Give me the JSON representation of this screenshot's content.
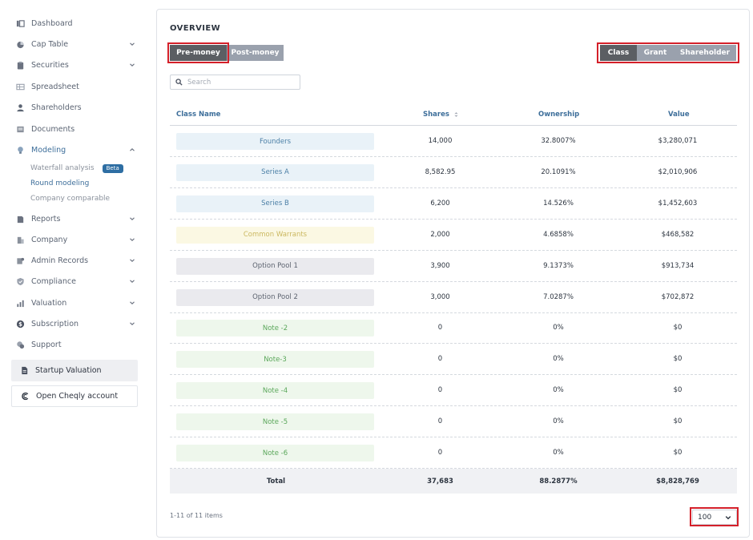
{
  "sidebar": {
    "items": [
      {
        "label": "Dashboard",
        "icon": "dashboard-icon",
        "chevron": false
      },
      {
        "label": "Cap Table",
        "icon": "pie-chart-icon",
        "chevron": true
      },
      {
        "label": "Securities",
        "icon": "clipboard-icon",
        "chevron": true
      },
      {
        "label": "Spreadsheet",
        "icon": "spreadsheet-icon",
        "chevron": false
      },
      {
        "label": "Shareholders",
        "icon": "user-icon",
        "chevron": false
      },
      {
        "label": "Documents",
        "icon": "documents-icon",
        "chevron": false
      },
      {
        "label": "Modeling",
        "icon": "lightbulb-icon",
        "chevron": true
      },
      {
        "label": "Reports",
        "icon": "reports-icon",
        "chevron": true
      },
      {
        "label": "Company",
        "icon": "building-icon",
        "chevron": true
      },
      {
        "label": "Admin Records",
        "icon": "admin-records-icon",
        "chevron": true
      },
      {
        "label": "Compliance",
        "icon": "shield-icon",
        "chevron": true
      },
      {
        "label": "Valuation",
        "icon": "bar-chart-icon",
        "chevron": true
      },
      {
        "label": "Subscription",
        "icon": "dollar-icon",
        "chevron": true
      },
      {
        "label": "Support",
        "icon": "support-icon",
        "chevron": false
      }
    ],
    "modeling_sub": {
      "waterfall": "Waterfall analysis",
      "beta": "Beta",
      "round": "Round modeling",
      "company_comparable": "Company comparable"
    },
    "startup_valuation": "Startup Valuation",
    "open_cheqly": "Open Cheqly account"
  },
  "overview": {
    "title": "OVERVIEW",
    "pre_money": "Pre-money",
    "post_money": "Post-money",
    "class": "Class",
    "grant": "Grant",
    "shareholder": "Shareholder",
    "search_placeholder": "Search"
  },
  "table": {
    "headers": {
      "class_name": "Class Name",
      "shares": "Shares",
      "ownership": "Ownership",
      "value": "Value"
    },
    "rows": [
      {
        "class_name": "Founders",
        "shares": "14,000",
        "ownership": "32.8007%",
        "value": "$3,280,071",
        "color": "blue"
      },
      {
        "class_name": "Series A",
        "shares": "8,582.95",
        "ownership": "20.1091%",
        "value": "$2,010,906",
        "color": "blue"
      },
      {
        "class_name": "Series B",
        "shares": "6,200",
        "ownership": "14.526%",
        "value": "$1,452,603",
        "color": "blue"
      },
      {
        "class_name": "Common Warrants",
        "shares": "2,000",
        "ownership": "4.6858%",
        "value": "$468,582",
        "color": "yellow"
      },
      {
        "class_name": "Option Pool 1",
        "shares": "3,900",
        "ownership": "9.1373%",
        "value": "$913,734",
        "color": "gray"
      },
      {
        "class_name": "Option Pool 2",
        "shares": "3,000",
        "ownership": "7.0287%",
        "value": "$702,872",
        "color": "gray"
      },
      {
        "class_name": "Note -2",
        "shares": "0",
        "ownership": "0%",
        "value": "$0",
        "color": "green"
      },
      {
        "class_name": "Note-3",
        "shares": "0",
        "ownership": "0%",
        "value": "$0",
        "color": "green"
      },
      {
        "class_name": "Note -4",
        "shares": "0",
        "ownership": "0%",
        "value": "$0",
        "color": "green"
      },
      {
        "class_name": "Note -5",
        "shares": "0",
        "ownership": "0%",
        "value": "$0",
        "color": "green"
      },
      {
        "class_name": "Note -6",
        "shares": "0",
        "ownership": "0%",
        "value": "$0",
        "color": "green"
      }
    ],
    "total": {
      "label": "Total",
      "shares": "37,683",
      "ownership": "88.2877%",
      "value": "$8,828,769"
    }
  },
  "pagination": {
    "info": "1-11 of 11 items",
    "page_size": "100"
  },
  "colors": {
    "accent": "#3d6e9a",
    "highlight_red": "#d4202a",
    "chip_blue_bg": "#e9f2f8",
    "chip_blue_fg": "#4b7fa6",
    "chip_yellow_bg": "#fbf8e3",
    "chip_yellow_fg": "#cbb860",
    "chip_gray_bg": "#eaeaee",
    "chip_gray_fg": "#5d6470",
    "chip_green_bg": "#eef7ec",
    "chip_green_fg": "#5aa75a"
  }
}
